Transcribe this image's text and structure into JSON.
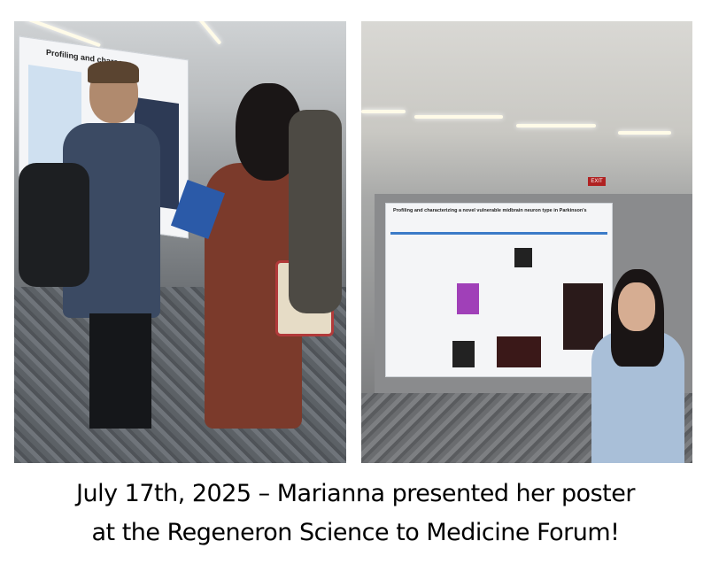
{
  "photos": [
    {
      "description_label": "left-photo",
      "poster_title": "Profiling and charac"
    },
    {
      "description_label": "right-photo",
      "poster_title": "Profiling and characterizing a novel vulnerable midbrain neuron type in Parkinson's disease"
    }
  ],
  "caption": {
    "line1": "July 17th, 2025 – Marianna presented her poster",
    "line2": "at the Regeneron Science to Medicine Forum!"
  },
  "exit_sign": "EXIT"
}
